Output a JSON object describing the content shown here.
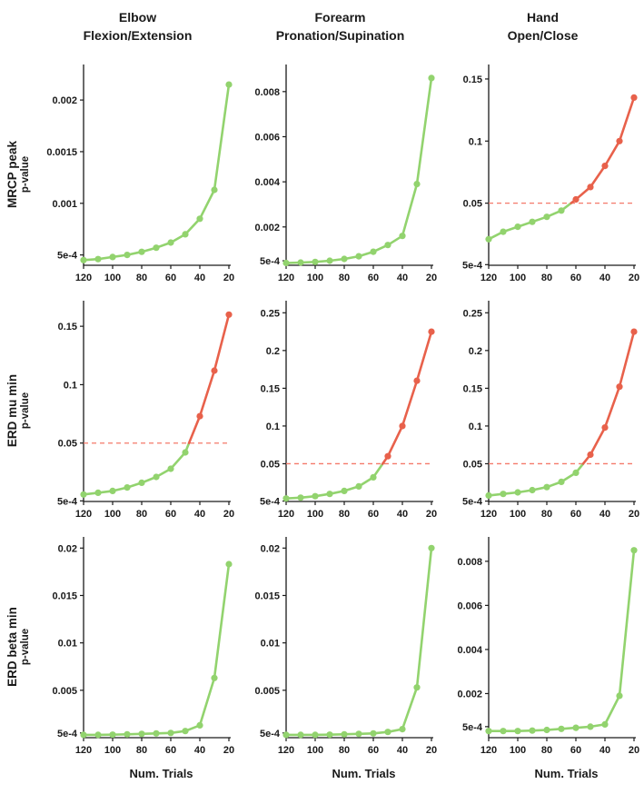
{
  "page": {
    "background": "#ffffff"
  },
  "columns": [
    {
      "title_line1": "Elbow",
      "title_line2": "Flexion/Extension"
    },
    {
      "title_line1": "Forearm",
      "title_line2": "Pronation/Supination"
    },
    {
      "title_line1": "Hand",
      "title_line2": "Open/Close"
    }
  ],
  "rows": [
    {
      "label": "MRCP peak",
      "sublabel": "p-value"
    },
    {
      "label": "ERD mu min",
      "sublabel": "p-value"
    },
    {
      "label": "ERD beta min",
      "sublabel": "p-value"
    }
  ],
  "xlabel": "Num. Trials",
  "colors": {
    "green": "#92d36e",
    "red": "#e8614b",
    "threshold": "#f4796a",
    "axis": "#1a1a1a",
    "text": "#1a1a1a"
  },
  "chart_data": [
    {
      "type": "line",
      "row": "MRCP peak",
      "col": "Elbow Flexion/Extension",
      "x": [
        120,
        110,
        100,
        90,
        80,
        70,
        60,
        50,
        40,
        30,
        20
      ],
      "values": [
        0.00045,
        0.00046,
        0.00048,
        0.0005,
        0.00053,
        0.00057,
        0.00062,
        0.0007,
        0.00085,
        0.00113,
        0.00215
      ],
      "yticks": [
        0.0005,
        0.001,
        0.0015,
        0.002
      ],
      "ytick_labels": [
        "5e-4",
        "0.001",
        "0.0015",
        "0.002"
      ],
      "ylim": [
        0.0004,
        0.0023
      ],
      "threshold": null,
      "xticks": [
        120,
        100,
        80,
        60,
        40,
        20
      ],
      "x_reversed": true,
      "grid": false,
      "legend": "none"
    },
    {
      "type": "line",
      "row": "MRCP peak",
      "col": "Forearm Pronation/Supination",
      "x": [
        120,
        110,
        100,
        90,
        80,
        70,
        60,
        50,
        40,
        30,
        20
      ],
      "values": [
        0.0004,
        0.00042,
        0.00045,
        0.0005,
        0.00058,
        0.0007,
        0.0009,
        0.0012,
        0.0016,
        0.0039,
        0.0086
      ],
      "yticks": [
        0.0005,
        0.002,
        0.004,
        0.006,
        0.008
      ],
      "ytick_labels": [
        "5e-4",
        "0.002",
        "0.004",
        "0.006",
        "0.008"
      ],
      "ylim": [
        0.0003,
        0.009
      ],
      "threshold": null,
      "xticks": [
        120,
        100,
        80,
        60,
        40,
        20
      ],
      "x_reversed": true,
      "grid": false,
      "legend": "none"
    },
    {
      "type": "line",
      "row": "MRCP peak",
      "col": "Hand Open/Close",
      "x": [
        120,
        110,
        100,
        90,
        80,
        70,
        60,
        50,
        40,
        30,
        20
      ],
      "values": [
        0.021,
        0.027,
        0.031,
        0.035,
        0.039,
        0.044,
        0.053,
        0.063,
        0.08,
        0.1,
        0.135
      ],
      "yticks": [
        0.0005,
        0.05,
        0.1,
        0.15
      ],
      "ytick_labels": [
        "5e-4",
        "0.05",
        "0.1",
        "0.15"
      ],
      "ylim": [
        0,
        0.158
      ],
      "threshold": 0.05,
      "xticks": [
        120,
        100,
        80,
        60,
        40,
        20
      ],
      "x_reversed": true,
      "grid": false,
      "legend": "none"
    },
    {
      "type": "line",
      "row": "ERD mu min",
      "col": "Elbow Flexion/Extension",
      "x": [
        120,
        110,
        100,
        90,
        80,
        70,
        60,
        50,
        40,
        30,
        20
      ],
      "values": [
        0.006,
        0.0075,
        0.009,
        0.012,
        0.016,
        0.021,
        0.028,
        0.042,
        0.073,
        0.112,
        0.16
      ],
      "yticks": [
        0.0005,
        0.05,
        0.1,
        0.15
      ],
      "ytick_labels": [
        "5e-4",
        "0.05",
        "0.1",
        "0.15"
      ],
      "ylim": [
        0,
        0.168
      ],
      "threshold": 0.05,
      "xticks": [
        120,
        100,
        80,
        60,
        40,
        20
      ],
      "x_reversed": true,
      "grid": false,
      "legend": "none"
    },
    {
      "type": "line",
      "row": "ERD mu min",
      "col": "Forearm Pronation/Supination",
      "x": [
        120,
        110,
        100,
        90,
        80,
        70,
        60,
        50,
        40,
        30,
        20
      ],
      "values": [
        0.004,
        0.005,
        0.007,
        0.01,
        0.014,
        0.02,
        0.032,
        0.06,
        0.1,
        0.16,
        0.225
      ],
      "yticks": [
        0.0005,
        0.05,
        0.1,
        0.15,
        0.2,
        0.25
      ],
      "ytick_labels": [
        "5e-4",
        "0.05",
        "0.1",
        "0.15",
        "0.2",
        "0.25"
      ],
      "ylim": [
        0,
        0.26
      ],
      "threshold": 0.05,
      "xticks": [
        120,
        100,
        80,
        60,
        40,
        20
      ],
      "x_reversed": true,
      "grid": false,
      "legend": "none"
    },
    {
      "type": "line",
      "row": "ERD mu min",
      "col": "Hand Open/Close",
      "x": [
        120,
        110,
        100,
        90,
        80,
        70,
        60,
        50,
        40,
        30,
        20
      ],
      "values": [
        0.008,
        0.01,
        0.012,
        0.015,
        0.019,
        0.026,
        0.038,
        0.062,
        0.098,
        0.152,
        0.225
      ],
      "yticks": [
        0.0005,
        0.05,
        0.1,
        0.15,
        0.2,
        0.25
      ],
      "ytick_labels": [
        "5e-4",
        "0.05",
        "0.1",
        "0.15",
        "0.2",
        "0.25"
      ],
      "ylim": [
        0,
        0.26
      ],
      "threshold": 0.05,
      "xticks": [
        120,
        100,
        80,
        60,
        40,
        20
      ],
      "x_reversed": true,
      "grid": false,
      "legend": "none"
    },
    {
      "type": "line",
      "row": "ERD beta min",
      "col": "Elbow Flexion/Extension",
      "x": [
        120,
        110,
        100,
        90,
        80,
        70,
        60,
        50,
        40,
        30,
        20
      ],
      "values": [
        0.0003,
        0.0003,
        0.00032,
        0.00035,
        0.0004,
        0.00045,
        0.0005,
        0.0007,
        0.0013,
        0.0063,
        0.0183
      ],
      "yticks": [
        0.0005,
        0.005,
        0.01,
        0.015,
        0.02
      ],
      "ytick_labels": [
        "5e-4",
        "0.005",
        "0.01",
        "0.015",
        "0.02"
      ],
      "ylim": [
        0,
        0.0207
      ],
      "threshold": null,
      "xticks": [
        120,
        100,
        80,
        60,
        40,
        20
      ],
      "x_reversed": true,
      "grid": false,
      "legend": "none"
    },
    {
      "type": "line",
      "row": "ERD beta min",
      "col": "Forearm Pronation/Supination",
      "x": [
        120,
        110,
        100,
        90,
        80,
        70,
        60,
        50,
        40,
        30,
        20
      ],
      "values": [
        0.0003,
        0.0003,
        0.0003,
        0.00032,
        0.00035,
        0.0004,
        0.00045,
        0.0006,
        0.0009,
        0.0053,
        0.02
      ],
      "yticks": [
        0.0005,
        0.005,
        0.01,
        0.015,
        0.02
      ],
      "ytick_labels": [
        "5e-4",
        "0.005",
        "0.01",
        "0.015",
        "0.02"
      ],
      "ylim": [
        0,
        0.0207
      ],
      "threshold": null,
      "xticks": [
        120,
        100,
        80,
        60,
        40,
        20
      ],
      "x_reversed": true,
      "grid": false,
      "legend": "none"
    },
    {
      "type": "line",
      "row": "ERD beta min",
      "col": "Hand Open/Close",
      "x": [
        120,
        110,
        100,
        90,
        80,
        70,
        60,
        50,
        40,
        30,
        20
      ],
      "values": [
        0.0003,
        0.0003,
        0.0003,
        0.00032,
        0.00035,
        0.0004,
        0.00045,
        0.0005,
        0.0006,
        0.0019,
        0.0085
      ],
      "yticks": [
        0.0005,
        0.002,
        0.004,
        0.006,
        0.008
      ],
      "ytick_labels": [
        "5e-4",
        "0.002",
        "0.004",
        "0.006",
        "0.008"
      ],
      "ylim": [
        0,
        0.0089
      ],
      "threshold": null,
      "xticks": [
        120,
        100,
        80,
        60,
        40,
        20
      ],
      "x_reversed": true,
      "grid": false,
      "legend": "none"
    }
  ]
}
